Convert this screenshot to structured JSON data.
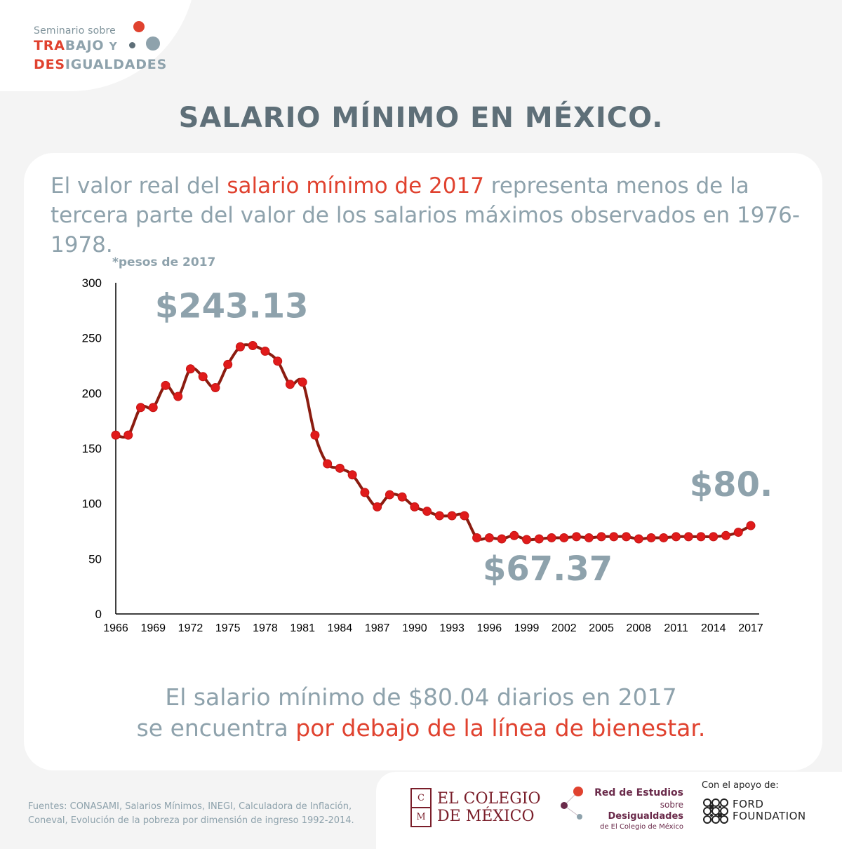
{
  "brand": {
    "line1": "Seminario sobre",
    "line2_a": "TRA",
    "line2_b": "BAJO",
    "line2_c": "Y",
    "line3_a": "DES",
    "line3_b": "IGUALDADES"
  },
  "title": "SALARIO MÍNIMO EN MÉXICO.",
  "subtitle": {
    "part1": "El valor real del ",
    "highlight": "salario mínimo de 2017",
    "part2": " representa menos de la tercera parte del valor de los salarios máximos observados en 1976-1978."
  },
  "unit_note": "*pesos de 2017",
  "footer": {
    "line1": "El salario mínimo de $80.04 diarios en 2017",
    "line2_a": "se encuentra ",
    "line2_b": "por debajo de la línea de bienestar."
  },
  "sources": "Fuentes: CONASAMI, Salarios Mínimos, INEGI, Calculadora de Inflación, Coneval, Evolución de la pobreza por dimensión de ingreso 1992-2014.",
  "logos": {
    "colmex_line1": "EL COLEGIO",
    "colmex_line2": "DE MÉXICO",
    "colmex_c": "C",
    "colmex_m": "M",
    "red_l1": "Red de Estudios",
    "red_l2_a": "sobre ",
    "red_l2_b": "Desigualdades",
    "red_l3": "de El Colegio de México",
    "ford_label": "Con el apoyo de:",
    "ford_l1": "FORD",
    "ford_l2": "FOUNDATION"
  },
  "colors": {
    "line": "#8b1c10",
    "marker": "#e01b1b",
    "accent": "#e0422f",
    "muted": "#8ea2ac",
    "title": "#5e6f78"
  },
  "chart_data": {
    "type": "line",
    "x": [
      1966,
      1967,
      1968,
      1969,
      1970,
      1971,
      1972,
      1973,
      1974,
      1975,
      1976,
      1977,
      1978,
      1979,
      1980,
      1981,
      1982,
      1983,
      1984,
      1985,
      1986,
      1987,
      1988,
      1989,
      1990,
      1991,
      1992,
      1993,
      1994,
      1995,
      1996,
      1997,
      1998,
      1999,
      2000,
      2001,
      2002,
      2003,
      2004,
      2005,
      2006,
      2007,
      2008,
      2009,
      2010,
      2011,
      2012,
      2013,
      2014,
      2015,
      2016,
      2017
    ],
    "series": [
      {
        "values": [
          162,
          162,
          187,
          187,
          207,
          197,
          222,
          215,
          205,
          226,
          242,
          243.13,
          238,
          229,
          208,
          210,
          162,
          136,
          132,
          126,
          110,
          97,
          108,
          106,
          97,
          93,
          89,
          89,
          89,
          69,
          69,
          68,
          71,
          67.37,
          68,
          69,
          69,
          70,
          69,
          70,
          70,
          70,
          68,
          69,
          69,
          70,
          70,
          70,
          70,
          71,
          74,
          80.04
        ]
      }
    ],
    "xlim": [
      1966,
      2017
    ],
    "ylim": [
      0,
      300
    ],
    "yticks": [
      0,
      50,
      100,
      150,
      200,
      250,
      300
    ],
    "xticks": [
      1966,
      1969,
      1972,
      1975,
      1978,
      1981,
      1984,
      1987,
      1990,
      1993,
      1996,
      1999,
      2002,
      2005,
      2008,
      2011,
      2014,
      2017
    ],
    "annotations": [
      {
        "text": "$243.13",
        "x": 1977,
        "y": 243.13
      },
      {
        "text": "$67.37",
        "x": 1999,
        "y": 67.37
      },
      {
        "text": "$80.04",
        "x": 2017,
        "y": 80.04
      }
    ],
    "grid": false
  }
}
